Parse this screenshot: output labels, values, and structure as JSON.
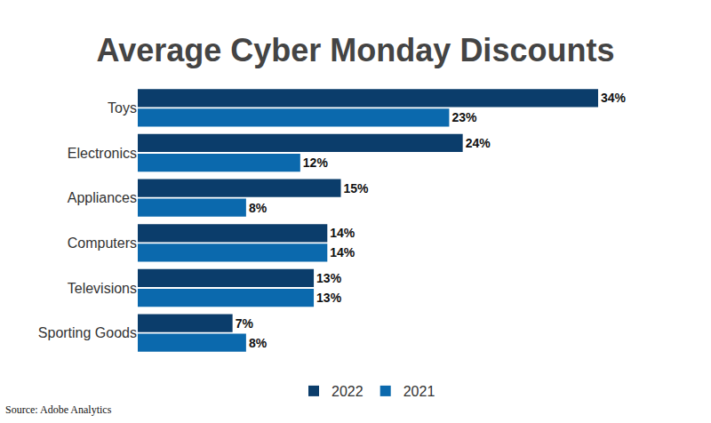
{
  "chart_data": {
    "type": "bar",
    "title": "Average Cyber Monday Discounts",
    "source": "Source: Adobe Analytics",
    "orientation": "horizontal",
    "categories": [
      "Toys",
      "Electronics",
      "Appliances",
      "Computers",
      "Televisions",
      "Sporting Goods"
    ],
    "series": [
      {
        "name": "2022",
        "color": "#0b3d6b",
        "values": [
          34,
          24,
          15,
          14,
          13,
          7
        ],
        "value_labels": [
          "34%",
          "24%",
          "15%",
          "14%",
          "13%",
          "7%"
        ]
      },
      {
        "name": "2021",
        "color": "#0b69ad",
        "values": [
          23,
          12,
          8,
          14,
          13,
          8
        ],
        "value_labels": [
          "23%",
          "12%",
          "8%",
          "14%",
          "13%",
          "8%"
        ]
      }
    ],
    "xlim": [
      0,
      34
    ],
    "data_labels": true,
    "tick_labels": "y",
    "grid": false,
    "legend": "bottom"
  }
}
